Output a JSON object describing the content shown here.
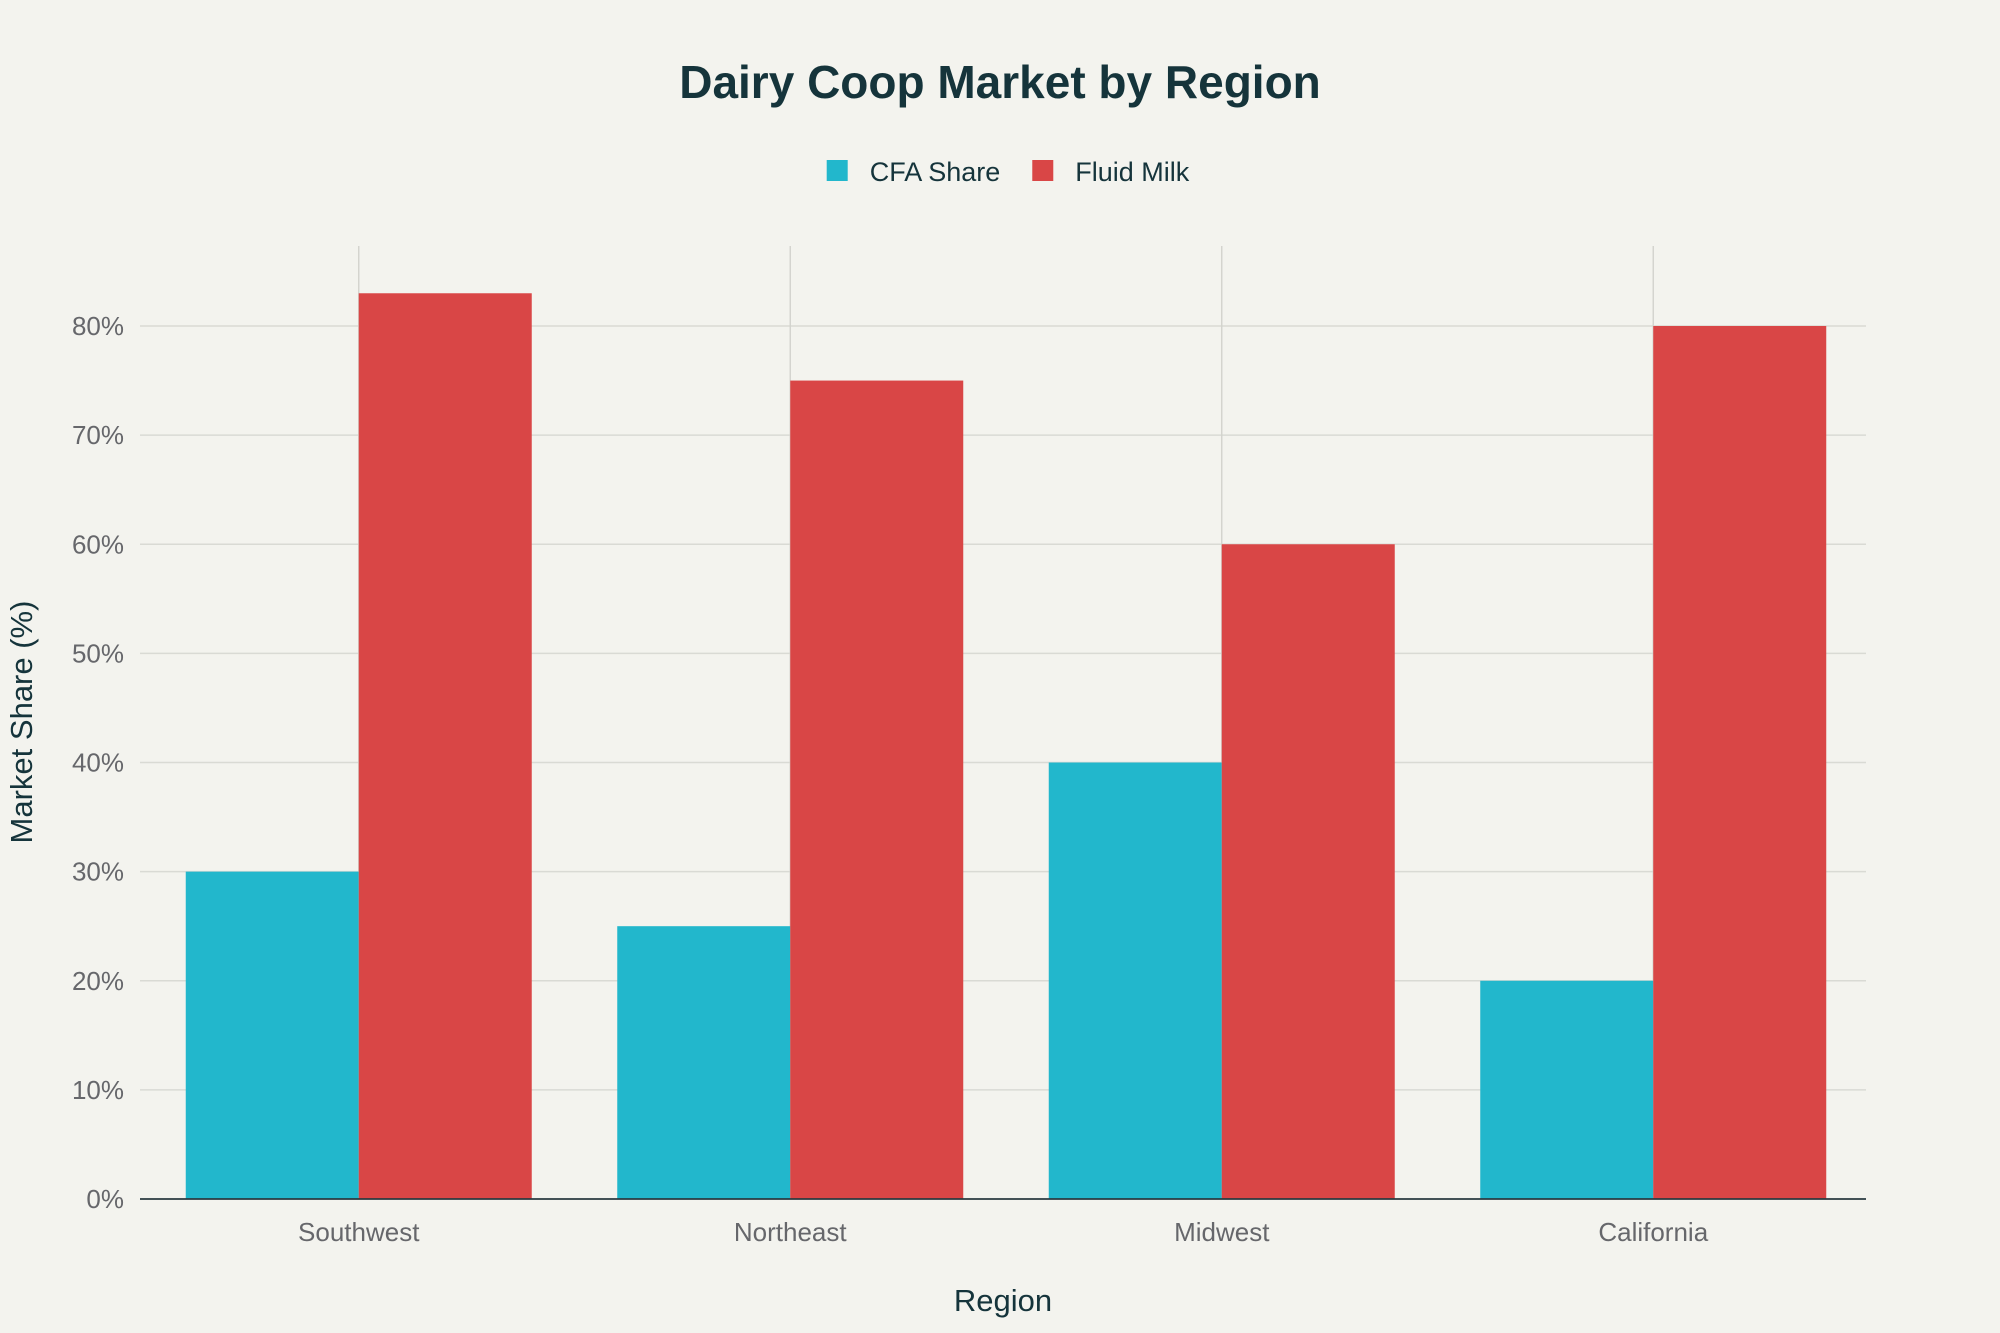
{
  "chart_data": {
    "type": "bar",
    "title": "Dairy Coop Market by Region",
    "xlabel": "Region",
    "ylabel": "Market Share (%)",
    "categories": [
      "Southwest",
      "Northeast",
      "Midwest",
      "California"
    ],
    "series": [
      {
        "name": "CFA Share",
        "color": "#22b7cc",
        "values": [
          30,
          25,
          40,
          20
        ]
      },
      {
        "name": "Fluid Milk",
        "color": "#d94646",
        "values": [
          83,
          75,
          60,
          80
        ]
      }
    ],
    "ylim": [
      0,
      88
    ],
    "yticks": [
      0,
      10,
      20,
      30,
      40,
      50,
      60,
      70,
      80
    ],
    "ytick_suffix": "%",
    "grid": true,
    "legend_position": "top-center"
  }
}
